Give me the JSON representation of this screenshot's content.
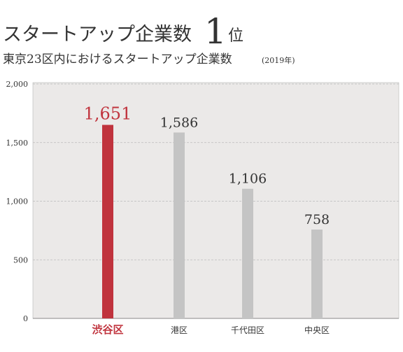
{
  "chart_data": {
    "type": "bar",
    "title": "スタートアップ企業数",
    "rank": "1",
    "rank_suffix": "位",
    "subtitle": "東京23区内におけるスタートアップ企業数",
    "subtitle_note": "(2019年)",
    "categories": [
      "渋谷区",
      "港区",
      "千代田区",
      "中央区"
    ],
    "values": [
      1651,
      1586,
      1106,
      758
    ],
    "value_labels": [
      "1,651",
      "1,586",
      "1,106",
      "758"
    ],
    "colors": [
      "#c0333d",
      "#c4c4c4",
      "#c4c4c4",
      "#c4c4c4"
    ],
    "highlight_index": 0,
    "ylim": [
      0,
      2000
    ],
    "yticks": [
      0,
      500,
      {
        "value": 1000,
        "label": "1,000"
      },
      {
        "value": 1500,
        "label": "1,500"
      },
      {
        "value": 2000,
        "label": "2,000"
      }
    ],
    "grid": true
  }
}
